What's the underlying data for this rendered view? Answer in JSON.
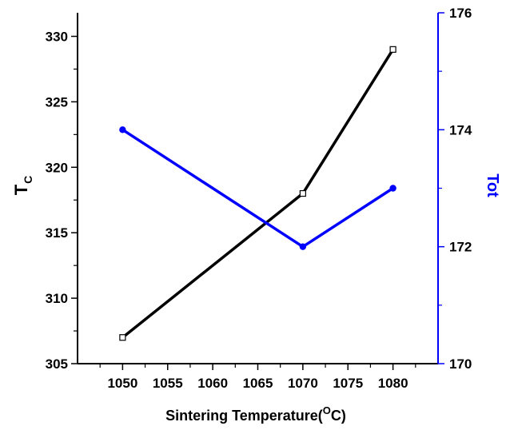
{
  "chart_data": {
    "type": "line",
    "title": "",
    "xlabel": "Sintering Temperature(",
    "xlabel_sup": "O",
    "xlabel_suffix": "C)",
    "x_ticks": [
      "1050",
      "1055",
      "1060",
      "1065",
      "1070",
      "1075",
      "1080"
    ],
    "xlim": [
      1045,
      1085
    ],
    "ylabel_left": "T",
    "ylabel_left_sub": "C",
    "ylim_left": [
      305,
      331.8
    ],
    "y_ticks_left": [
      "305",
      "310",
      "315",
      "320",
      "325",
      "330"
    ],
    "ylabel_right": "Tot",
    "ylim_right": [
      170,
      176
    ],
    "y_ticks_right": [
      "170",
      "172",
      "174",
      "176"
    ],
    "grid": false,
    "series": [
      {
        "axis": "left",
        "color": "#000000",
        "marker": "open-square",
        "x": [
          1050,
          1070,
          1080
        ],
        "values": [
          307,
          318,
          329
        ]
      },
      {
        "axis": "right",
        "color": "#0000ff",
        "marker": "filled-circle",
        "x": [
          1050,
          1070,
          1080
        ],
        "values": [
          174,
          172,
          173
        ]
      }
    ]
  }
}
